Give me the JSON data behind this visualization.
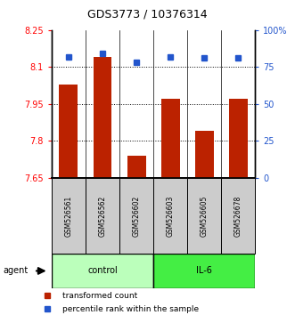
{
  "title": "GDS3773 / 10376314",
  "samples": [
    "GSM526561",
    "GSM526562",
    "GSM526602",
    "GSM526603",
    "GSM526605",
    "GSM526678"
  ],
  "groups": [
    "control",
    "control",
    "control",
    "IL-6",
    "IL-6",
    "IL-6"
  ],
  "red_values": [
    8.03,
    8.14,
    7.74,
    7.97,
    7.84,
    7.97
  ],
  "blue_values": [
    82,
    84,
    78,
    82,
    81,
    81
  ],
  "ylim_left": [
    7.65,
    8.25
  ],
  "ylim_right": [
    0,
    100
  ],
  "yticks_left": [
    7.65,
    7.8,
    7.95,
    8.1,
    8.25
  ],
  "ytick_labels_left": [
    "7.65",
    "7.8",
    "7.95",
    "8.1",
    "8.25"
  ],
  "yticks_right": [
    0,
    25,
    50,
    75,
    100
  ],
  "ytick_labels_right": [
    "0",
    "25",
    "50",
    "75",
    "100%"
  ],
  "hlines": [
    7.8,
    7.95,
    8.1
  ],
  "bar_color": "#bb2200",
  "dot_color": "#2255cc",
  "control_color": "#bbffbb",
  "il6_color": "#44ee44",
  "group_label_bg": "#cccccc",
  "control_label": "control",
  "il6_label": "IL-6",
  "agent_label": "agent",
  "legend1": "transformed count",
  "legend2": "percentile rank within the sample",
  "title_fontsize": 9,
  "tick_fontsize": 7,
  "label_fontsize": 5.5,
  "group_fontsize": 7,
  "legend_fontsize": 6.5
}
